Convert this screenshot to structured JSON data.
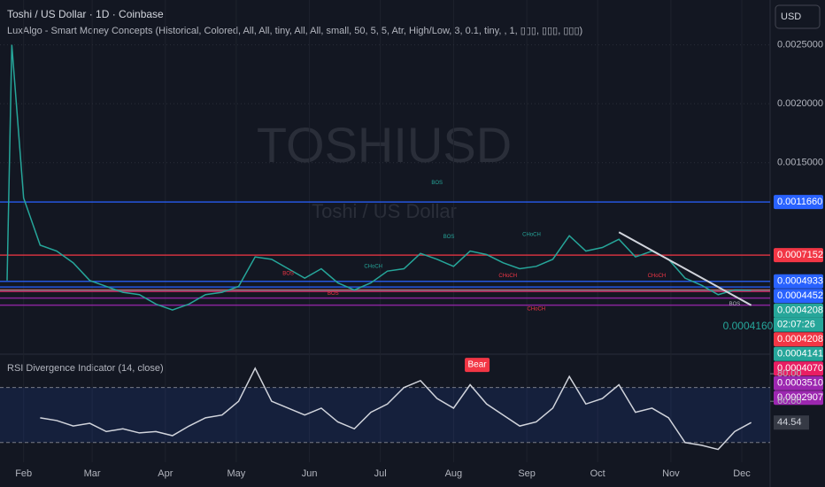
{
  "header": {
    "title": "Toshi / US Dollar · 1D · Coinbase",
    "indicator": "LuxAlgo - Smart Money Concepts (Historical, Colored, All, All, tiny, All, All, small, 50, 5, 5, Atr, High/Low, 3, 0.1, tiny, , 1, ▯▯▯, ▯▯▯, ▯▯▯)",
    "currency": "USD",
    "watermark": "TOSHIUSD",
    "watermark_subtitle": "Toshi / US Dollar"
  },
  "chart_data": [
    {
      "type": "line",
      "color": "#26a69a",
      "x": [
        -7,
        -5,
        0,
        7,
        14,
        21,
        28,
        35,
        42,
        49,
        56,
        63,
        70,
        77,
        84,
        91,
        98,
        105,
        112,
        119,
        126,
        133,
        140,
        147,
        154,
        161,
        168,
        175,
        182,
        189,
        196,
        203,
        210,
        217,
        224,
        231,
        238,
        245,
        252,
        259,
        266,
        273,
        280,
        287,
        294,
        301,
        308
      ],
      "values": [
        0.0005,
        0.0025,
        0.0012,
        0.0008,
        0.00075,
        0.00065,
        0.0005,
        0.00045,
        0.0004,
        0.00038,
        0.0003,
        0.00025,
        0.0003,
        0.00038,
        0.0004,
        0.00045,
        0.0007,
        0.00068,
        0.0006,
        0.00052,
        0.0006,
        0.00048,
        0.00042,
        0.00048,
        0.00058,
        0.0006,
        0.00073,
        0.00068,
        0.00062,
        0.00075,
        0.00072,
        0.00065,
        0.0006,
        0.00062,
        0.00068,
        0.00088,
        0.00075,
        0.00078,
        0.00085,
        0.0007,
        0.00075,
        0.00068,
        0.00052,
        0.00046,
        0.00038,
        0.00042,
        0.000416
      ],
      "xlim": [
        -10,
        316
      ],
      "ylim": [
        -0.00011,
        0.00282
      ],
      "yticks": [
        {
          "value": 0.0025,
          "label": "0.0025000"
        },
        {
          "value": 0.002,
          "label": "0.0020000"
        },
        {
          "value": 0.0015,
          "label": "0.0015000"
        }
      ],
      "levels": [
        {
          "value": 0.001166,
          "label": "0.0011660",
          "color": "#2962ff"
        },
        {
          "value": 0.0007152,
          "label": "0.0007152",
          "color": "#f23645"
        },
        {
          "value": 0.0004933,
          "label": "0.0004933",
          "color": "#2962ff"
        },
        {
          "value": 0.0004452,
          "label": "0.0004452",
          "color": "#2962ff"
        },
        {
          "value": 0.0004208,
          "label": "0.0004208",
          "color": "#26a69a"
        },
        {
          "value": 0.0004208,
          "label": "0.0004208",
          "color": "#f23645"
        },
        {
          "value": 0.0004141,
          "label": "0.0004141",
          "color": "#26a69a"
        },
        {
          "value": 0.000407,
          "label": "0.0004070",
          "color": "#e91e63"
        },
        {
          "value": 0.000351,
          "label": "0.0003510",
          "color": "#9c27b0"
        },
        {
          "value": 0.0002907,
          "label": "0.0002907",
          "color": "#9c27b0"
        }
      ],
      "countdown": "02:07:26",
      "last_price": {
        "value": 0.000416,
        "label": "0.0004160"
      },
      "trendline": {
        "x": [
          252,
          308
        ],
        "values": [
          0.00091,
          0.00029
        ]
      },
      "annotations": [
        {
          "text": "BOS",
          "x": 175,
          "y": 0.00133,
          "color": "#26a69a"
        },
        {
          "text": "BOS",
          "x": 180,
          "y": 0.00087,
          "color": "#26a69a"
        },
        {
          "text": "CHoCH",
          "x": 215,
          "y": 0.00089,
          "color": "#26a69a"
        },
        {
          "text": "CHoCH",
          "x": 148,
          "y": 0.00062,
          "color": "#26a69a"
        },
        {
          "text": "BOS",
          "x": 112,
          "y": 0.00056,
          "color": "#f23645"
        },
        {
          "text": "BOS",
          "x": 131,
          "y": 0.00039,
          "color": "#f23645"
        },
        {
          "text": "CHoCH",
          "x": 205,
          "y": 0.00054,
          "color": "#f23645"
        },
        {
          "text": "CHoCH",
          "x": 268,
          "y": 0.00054,
          "color": "#f23645"
        },
        {
          "text": "CHoCH",
          "x": 217,
          "y": 0.00026,
          "color": "#f23645"
        },
        {
          "text": "BOS",
          "x": 301,
          "y": 0.0003,
          "color": "#b2b5be"
        }
      ]
    },
    {
      "type": "line",
      "title": "RSI Divergence Indicator (14, close)",
      "color": "#d1d4dc",
      "x": [
        7,
        14,
        21,
        28,
        35,
        42,
        49,
        56,
        63,
        70,
        77,
        84,
        91,
        98,
        105,
        112,
        119,
        126,
        133,
        140,
        147,
        154,
        161,
        168,
        175,
        182,
        189,
        196,
        203,
        210,
        217,
        224,
        231,
        238,
        245,
        252,
        259,
        266,
        273,
        280,
        287,
        294,
        301,
        308
      ],
      "values": [
        48,
        46,
        42,
        44,
        38,
        40,
        37,
        38,
        35,
        42,
        48,
        50,
        60,
        84,
        60,
        55,
        50,
        55,
        45,
        40,
        52,
        58,
        70,
        75,
        62,
        55,
        72,
        58,
        50,
        42,
        45,
        55,
        78,
        58,
        62,
        72,
        52,
        55,
        48,
        30,
        28,
        25,
        38,
        44.54
      ],
      "xlim": [
        -10,
        316
      ],
      "ylim": [
        17,
        91
      ],
      "band": [
        30,
        70
      ],
      "yticks": [
        {
          "value": 80,
          "label": "80.00"
        },
        {
          "value": 60,
          "label": "60.00"
        }
      ],
      "xticks": [
        {
          "value": 0,
          "label": "Feb"
        },
        {
          "value": 29,
          "label": "Mar"
        },
        {
          "value": 60,
          "label": "Apr"
        },
        {
          "value": 90,
          "label": "May"
        },
        {
          "value": 121,
          "label": "Jun"
        },
        {
          "value": 151,
          "label": "Jul"
        },
        {
          "value": 182,
          "label": "Aug"
        },
        {
          "value": 213,
          "label": "Sep"
        },
        {
          "value": 243,
          "label": "Oct"
        },
        {
          "value": 274,
          "label": "Nov"
        },
        {
          "value": 304,
          "label": "Dec"
        }
      ],
      "annotations": [
        {
          "text": "Bear",
          "x": 192,
          "y": 80,
          "color": "#f23645"
        }
      ]
    }
  ]
}
